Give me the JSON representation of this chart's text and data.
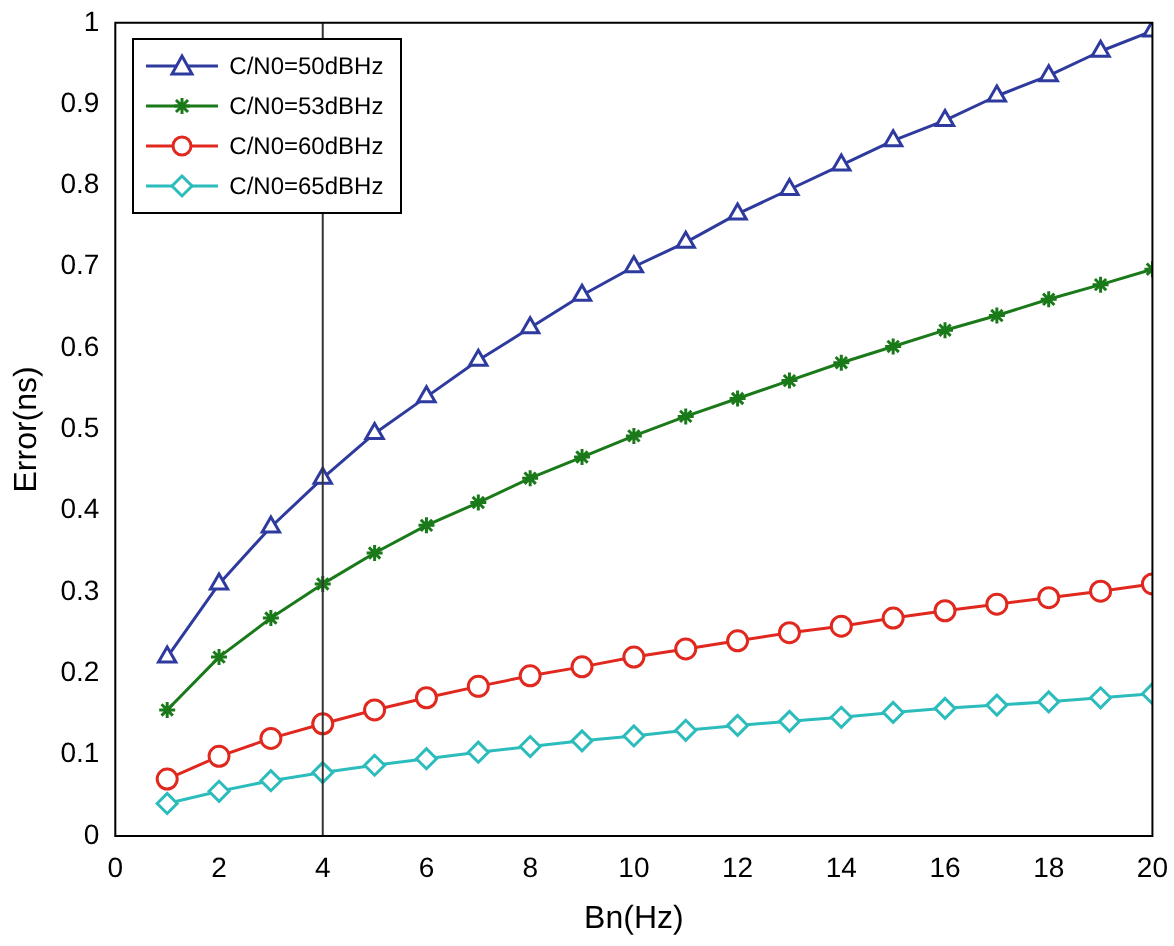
{
  "chart_data": {
    "type": "line",
    "xlabel": "Bn(Hz)",
    "ylabel": "Error(ns)",
    "x": [
      1,
      2,
      3,
      4,
      5,
      6,
      7,
      8,
      9,
      10,
      11,
      12,
      13,
      14,
      15,
      16,
      17,
      18,
      19,
      20
    ],
    "xlim": [
      0,
      20
    ],
    "xticks": [
      0,
      2,
      4,
      6,
      8,
      10,
      12,
      14,
      16,
      18,
      20
    ],
    "ylim": [
      0,
      1
    ],
    "yticks": [
      0,
      0.1,
      0.2,
      0.3,
      0.4,
      0.5,
      0.6,
      0.7,
      0.8,
      0.9,
      1
    ],
    "grid": false,
    "legend": "top left",
    "line_style": "solid",
    "ref_lines": [
      {
        "axis": "x",
        "value": 4,
        "color": "#333333"
      }
    ],
    "series": [
      {
        "name": "C/N0=50dBHz",
        "color": "#2e3a9e",
        "marker": "triangle",
        "values": [
          0.22,
          0.31,
          0.38,
          0.44,
          0.495,
          0.54,
          0.585,
          0.625,
          0.665,
          0.7,
          0.73,
          0.765,
          0.795,
          0.825,
          0.855,
          0.88,
          0.91,
          0.935,
          0.965,
          0.99
        ]
      },
      {
        "name": "C/N0=53dBHz",
        "color": "#1a7a1a",
        "marker": "cross",
        "values": [
          0.155,
          0.22,
          0.268,
          0.31,
          0.348,
          0.382,
          0.41,
          0.44,
          0.466,
          0.492,
          0.516,
          0.538,
          0.56,
          0.582,
          0.602,
          0.622,
          0.64,
          0.66,
          0.678,
          0.697
        ]
      },
      {
        "name": "C/N0=60dBHz",
        "color": "#e0281e",
        "marker": "circle",
        "values": [
          0.07,
          0.098,
          0.12,
          0.138,
          0.155,
          0.17,
          0.184,
          0.197,
          0.208,
          0.22,
          0.23,
          0.24,
          0.25,
          0.258,
          0.268,
          0.277,
          0.285,
          0.293,
          0.301,
          0.31
        ]
      },
      {
        "name": "C/N0=65dBHz",
        "color": "#2cbcbc",
        "marker": "diamond",
        "values": [
          0.04,
          0.055,
          0.068,
          0.078,
          0.087,
          0.095,
          0.103,
          0.11,
          0.117,
          0.123,
          0.13,
          0.136,
          0.141,
          0.146,
          0.152,
          0.157,
          0.161,
          0.165,
          0.17,
          0.175
        ]
      }
    ]
  }
}
